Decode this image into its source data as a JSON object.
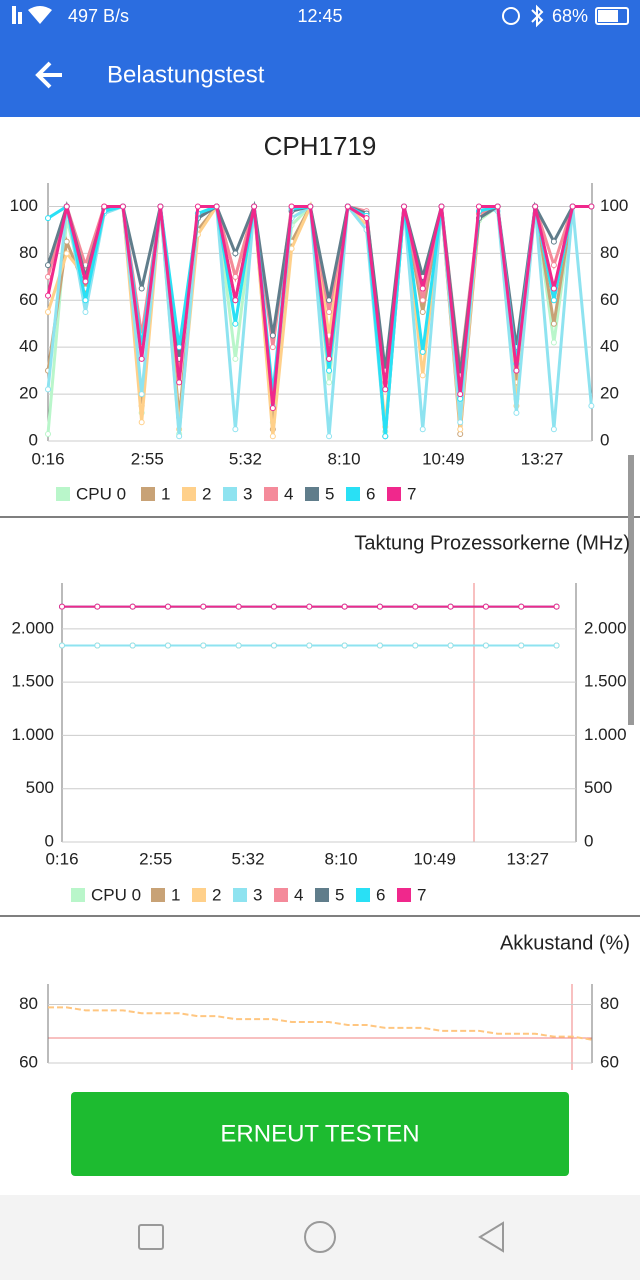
{
  "status_bar": {
    "network": "497 B/s",
    "time": "12:45",
    "battery": "68%"
  },
  "app_bar": {
    "title": "Belastungstest"
  },
  "chart_data": [
    {
      "type": "line",
      "title": "CPH1719",
      "x": [
        16,
        46,
        76,
        106,
        136,
        166,
        196,
        226,
        256,
        286,
        316,
        346,
        376,
        406,
        436,
        466,
        496,
        526,
        556,
        586,
        616,
        646,
        676,
        706,
        736,
        766,
        796,
        826,
        856,
        886
      ],
      "xlim": [
        16,
        887
      ],
      "xticks": [
        {
          "value": 16,
          "label": "0:16"
        },
        {
          "value": 175,
          "label": "2:55"
        },
        {
          "value": 332,
          "label": "5:32"
        },
        {
          "value": 490,
          "label": "8:10"
        },
        {
          "value": 649,
          "label": "10:49"
        },
        {
          "value": 807,
          "label": "13:27"
        }
      ],
      "ylim": [
        0,
        110
      ],
      "yticks": [
        0,
        20,
        40,
        60,
        80,
        100
      ],
      "grid": true,
      "series": [
        {
          "name": "CPU 0",
          "color": "#b9f6ca",
          "values": [
            3,
            95,
            62,
            99,
            100,
            12,
            100,
            3,
            97,
            100,
            35,
            100,
            8,
            92,
            100,
            25,
            100,
            96,
            4,
            100,
            58,
            100,
            12,
            94,
            100,
            18,
            100,
            42,
            100,
            100
          ]
        },
        {
          "name": "1",
          "color": "#c8a276",
          "values": [
            30,
            85,
            65,
            100,
            100,
            15,
            100,
            10,
            90,
            100,
            60,
            100,
            5,
            85,
            100,
            40,
            100,
            95,
            2,
            100,
            55,
            100,
            3,
            95,
            100,
            25,
            100,
            50,
            100,
            100
          ]
        },
        {
          "name": "2",
          "color": "#ffd08a",
          "values": [
            55,
            80,
            70,
            98,
            100,
            8,
            100,
            5,
            88,
            100,
            70,
            100,
            2,
            82,
            100,
            45,
            100,
            92,
            6,
            100,
            28,
            100,
            5,
            97,
            100,
            15,
            100,
            60,
            100,
            100
          ]
        },
        {
          "name": "3",
          "color": "#8ee3f0",
          "values": [
            22,
            100,
            55,
            97,
            100,
            20,
            100,
            2,
            96,
            100,
            5,
            100,
            15,
            95,
            100,
            2,
            100,
            90,
            2,
            100,
            5,
            100,
            8,
            100,
            98,
            12,
            100,
            5,
            100,
            15
          ]
        },
        {
          "name": "4",
          "color": "#f48a9a",
          "values": [
            70,
            100,
            75,
            100,
            100,
            45,
            100,
            30,
            96,
            100,
            70,
            100,
            40,
            100,
            100,
            55,
            100,
            98,
            25,
            100,
            60,
            100,
            30,
            97,
            100,
            35,
            100,
            75,
            100,
            100
          ]
        },
        {
          "name": "5",
          "color": "#607d8b",
          "values": [
            75,
            100,
            70,
            99,
            100,
            65,
            100,
            35,
            95,
            100,
            80,
            100,
            45,
            98,
            100,
            60,
            100,
            97,
            30,
            100,
            70,
            100,
            28,
            95,
            100,
            40,
            100,
            85,
            100,
            100
          ]
        },
        {
          "name": "6",
          "color": "#29e0f5",
          "values": [
            95,
            100,
            60,
            98,
            100,
            40,
            100,
            40,
            97,
            100,
            50,
            100,
            20,
            99,
            100,
            30,
            100,
            96,
            2,
            100,
            38,
            100,
            18,
            98,
            100,
            33,
            100,
            60,
            100,
            100
          ]
        },
        {
          "name": "7",
          "color": "#f0288c",
          "values": [
            62,
            100,
            68,
            100,
            100,
            35,
            100,
            25,
            100,
            100,
            60,
            100,
            14,
            100,
            100,
            35,
            100,
            95,
            22,
            100,
            65,
            100,
            20,
            100,
            100,
            30,
            100,
            65,
            100,
            100
          ]
        }
      ]
    },
    {
      "type": "line",
      "title": "Taktung Prozessorkerne (MHz)",
      "x": [
        16,
        76,
        136,
        196,
        256,
        316,
        376,
        436,
        496,
        556,
        616,
        676,
        736,
        796,
        856
      ],
      "xlim": [
        16,
        889
      ],
      "xticks": [
        {
          "value": 16,
          "label": "0:16"
        },
        {
          "value": 175,
          "label": "2:55"
        },
        {
          "value": 332,
          "label": "5:32"
        },
        {
          "value": 490,
          "label": "8:10"
        },
        {
          "value": 649,
          "label": "10:49"
        },
        {
          "value": 807,
          "label": "13:27"
        }
      ],
      "ylim": [
        0,
        2430
      ],
      "yticks": [
        0,
        500,
        {
          "value": 1000,
          "label": "1.000"
        },
        {
          "value": 1500,
          "label": "1.500"
        },
        {
          "value": 2000,
          "label": "2.000"
        }
      ],
      "grid": true,
      "series": [
        {
          "name": "CPU 0",
          "color": "#b9f6ca",
          "values": [
            1844,
            1844,
            1844,
            1844,
            1844,
            1844,
            1844,
            1844,
            1844,
            1844,
            1844,
            1844,
            1844,
            1844,
            1844
          ]
        },
        {
          "name": "1",
          "color": "#c8a276",
          "values": [
            1844,
            1844,
            1844,
            1844,
            1844,
            1844,
            1844,
            1844,
            1844,
            1844,
            1844,
            1844,
            1844,
            1844,
            1844
          ]
        },
        {
          "name": "2",
          "color": "#ffd08a",
          "values": [
            1844,
            1844,
            1844,
            1844,
            1844,
            1844,
            1844,
            1844,
            1844,
            1844,
            1844,
            1844,
            1844,
            1844,
            1844
          ]
        },
        {
          "name": "3",
          "color": "#8ee3f0",
          "values": [
            1844,
            1844,
            1844,
            1844,
            1844,
            1844,
            1844,
            1844,
            1844,
            1844,
            1844,
            1844,
            1844,
            1844,
            1844
          ]
        },
        {
          "name": "4",
          "color": "#f48a9a",
          "values": [
            2208,
            2208,
            2208,
            2208,
            2208,
            2208,
            2208,
            2208,
            2208,
            2208,
            2208,
            2208,
            2208,
            2208,
            2208
          ]
        },
        {
          "name": "5",
          "color": "#607d8b",
          "values": [
            2208,
            2208,
            2208,
            2208,
            2208,
            2208,
            2208,
            2208,
            2208,
            2208,
            2208,
            2208,
            2208,
            2208,
            2208
          ]
        },
        {
          "name": "6",
          "color": "#29e0f5",
          "values": [
            2208,
            2208,
            2208,
            2208,
            2208,
            2208,
            2208,
            2208,
            2208,
            2208,
            2208,
            2208,
            2208,
            2208,
            2208
          ]
        },
        {
          "name": "7",
          "color": "#f0288c",
          "values": [
            2208,
            2208,
            2208,
            2208,
            2208,
            2208,
            2208,
            2208,
            2208,
            2208,
            2208,
            2208,
            2208,
            2208,
            2208
          ]
        }
      ]
    },
    {
      "type": "line",
      "title": "Akkustand (%)",
      "x": [
        16,
        46,
        76,
        106,
        136,
        166,
        196,
        226,
        256,
        286,
        316,
        346,
        376,
        406,
        436,
        466,
        496,
        526,
        556,
        586,
        616,
        646,
        676,
        706,
        736,
        766,
        796,
        826,
        856,
        886
      ],
      "xlim": [
        16,
        887
      ],
      "ylim": [
        60,
        87
      ],
      "yticks": [
        60,
        80
      ],
      "grid": true,
      "series": [
        {
          "color": "#ffc680",
          "values": [
            79,
            79,
            78,
            78,
            78,
            77,
            77,
            77,
            76,
            76,
            75,
            75,
            75,
            74,
            74,
            74,
            73,
            73,
            72,
            72,
            72,
            71,
            71,
            71,
            70,
            70,
            70,
            69,
            69,
            68
          ]
        }
      ]
    }
  ],
  "button": {
    "label": "ERNEUT TESTEN"
  }
}
